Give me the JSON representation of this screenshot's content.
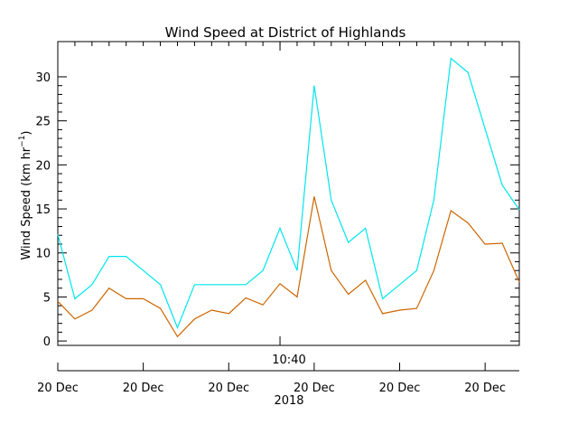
{
  "chart_data": {
    "type": "line",
    "title": "Wind Speed at District of Highlands",
    "ylabel_main": "Wind Speed (km hr",
    "ylabel_sup": "−1",
    "ylabel_end": ")",
    "ylim": [
      -0.5,
      34
    ],
    "yticks": [
      0,
      5,
      10,
      15,
      20,
      25,
      30
    ],
    "x_index_range": [
      0,
      27
    ],
    "time_axis_label": "10:40",
    "time_axis_label_index": 13,
    "date_ticks": [
      {
        "index": 0,
        "label": "20 Dec"
      },
      {
        "index": 5,
        "label": "20 Dec"
      },
      {
        "index": 10,
        "label": "20 Dec"
      },
      {
        "index": 15,
        "label": "20 Dec"
      },
      {
        "index": 20,
        "label": "20 Dec"
      },
      {
        "index": 25,
        "label": "20 Dec"
      }
    ],
    "year_label": "2018",
    "grid": false,
    "series": [
      {
        "color": "#00e5ee",
        "values": [
          12.1,
          4.8,
          6.4,
          9.6,
          9.6,
          8.0,
          6.4,
          1.5,
          6.4,
          6.4,
          6.4,
          6.4,
          8.0,
          12.8,
          8.0,
          29.0,
          16.0,
          11.2,
          12.8,
          4.8,
          6.4,
          8.0,
          16.0,
          32.1,
          30.5,
          24.1,
          17.7,
          14.9
        ]
      },
      {
        "color": "#cd6600",
        "values": [
          4.5,
          2.5,
          3.5,
          6.0,
          4.8,
          4.8,
          3.7,
          0.5,
          2.5,
          3.5,
          3.1,
          4.9,
          4.1,
          6.5,
          5.0,
          16.4,
          8.0,
          5.3,
          6.9,
          3.1,
          3.5,
          3.7,
          8.0,
          14.8,
          13.4,
          11.0,
          11.1,
          6.7
        ]
      }
    ]
  }
}
